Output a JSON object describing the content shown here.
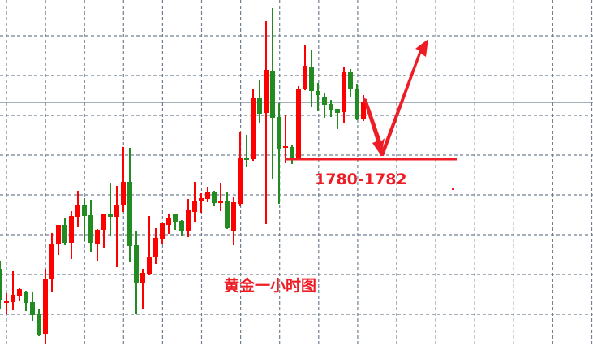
{
  "chart_data": {
    "type": "candlestick",
    "title": "黄金一小时图",
    "xlabel": "",
    "ylabel": "",
    "grid": true,
    "ylim": [
      1758.0,
      1800.6
    ],
    "up_color": "#ff0000",
    "down_color": "#228b22",
    "grid_color": "#708090",
    "annotation_color": "#ee1c25",
    "support_level": 1781.0,
    "reference_level": 1788.0,
    "support_label": "1780-1782",
    "arrow_path_prices": [
      1788.4,
      1781.2,
      1795.8
    ],
    "candles": [
      [
        1767.5,
        1768.5,
        1762.6,
        1763.7
      ],
      [
        1763.5,
        1764.5,
        1761.9,
        1763.5
      ],
      [
        1763.4,
        1767.2,
        1762.4,
        1764.3
      ],
      [
        1764.1,
        1765.2,
        1763.5,
        1765.0
      ],
      [
        1764.7,
        1764.8,
        1762.3,
        1763.3
      ],
      [
        1763.4,
        1764.7,
        1761.1,
        1761.8
      ],
      [
        1762.0,
        1762.5,
        1759.2,
        1759.3
      ],
      [
        1759.5,
        1767.5,
        1758.2,
        1766.3
      ],
      [
        1766.2,
        1771.9,
        1764.7,
        1770.6
      ],
      [
        1770.5,
        1772.9,
        1769.2,
        1772.9
      ],
      [
        1772.9,
        1773.7,
        1770.4,
        1770.7
      ],
      [
        1770.7,
        1774.6,
        1768.7,
        1774.0
      ],
      [
        1773.9,
        1777.1,
        1772.7,
        1775.4
      ],
      [
        1775.4,
        1776.2,
        1770.9,
        1774.0
      ],
      [
        1774.1,
        1776.0,
        1769.6,
        1770.7
      ],
      [
        1770.6,
        1772.4,
        1768.5,
        1772.3
      ],
      [
        1772.3,
        1774.2,
        1770.1,
        1774.2
      ],
      [
        1774.2,
        1778.1,
        1771.5,
        1773.9
      ],
      [
        1773.9,
        1777.7,
        1767.7,
        1775.3
      ],
      [
        1775.4,
        1782.5,
        1774.5,
        1778.2
      ],
      [
        1778.2,
        1782.4,
        1768.4,
        1770.3
      ],
      [
        1770.4,
        1772.1,
        1762.0,
        1765.7
      ],
      [
        1765.7,
        1767.5,
        1762.5,
        1767.0
      ],
      [
        1766.9,
        1774.0,
        1766.7,
        1769.0
      ],
      [
        1769.0,
        1772.5,
        1768.1,
        1771.3
      ],
      [
        1771.2,
        1773.1,
        1770.6,
        1773.1
      ],
      [
        1772.9,
        1774.2,
        1771.8,
        1773.8
      ],
      [
        1774.2,
        1774.2,
        1772.3,
        1773.3
      ],
      [
        1773.4,
        1773.5,
        1771.6,
        1772.2
      ],
      [
        1772.2,
        1776.1,
        1771.4,
        1774.7
      ],
      [
        1774.5,
        1778.2,
        1773.3,
        1775.9
      ],
      [
        1775.8,
        1776.8,
        1774.4,
        1776.2
      ],
      [
        1776.1,
        1777.6,
        1775.7,
        1776.9
      ],
      [
        1776.9,
        1777.1,
        1775.2,
        1775.6
      ],
      [
        1775.6,
        1778.1,
        1774.6,
        1775.9
      ],
      [
        1775.9,
        1776.9,
        1772.4,
        1772.5
      ],
      [
        1772.2,
        1776.3,
        1770.4,
        1775.7
      ],
      [
        1775.5,
        1784.4,
        1775.2,
        1781.2
      ],
      [
        1781.2,
        1784.0,
        1780.1,
        1780.9
      ],
      [
        1781.0,
        1789.7,
        1780.8,
        1788.5
      ],
      [
        1788.5,
        1790.7,
        1785.4,
        1786.6
      ],
      [
        1786.7,
        1798.0,
        1773.0,
        1792.0
      ],
      [
        1791.8,
        1799.6,
        1778.5,
        1786.1
      ],
      [
        1786.2,
        1787.9,
        1775.5,
        1782.3
      ],
      [
        1782.5,
        1786.5,
        1780.5,
        1782.6
      ],
      [
        1782.5,
        1782.8,
        1780.4,
        1781.0
      ],
      [
        1781.0,
        1790.0,
        1780.9,
        1789.7
      ],
      [
        1789.6,
        1795.0,
        1789.5,
        1792.5
      ],
      [
        1792.4,
        1794.4,
        1787.4,
        1789.4
      ],
      [
        1789.4,
        1790.4,
        1786.9,
        1788.9
      ],
      [
        1788.6,
        1789.2,
        1786.1,
        1787.7
      ],
      [
        1787.8,
        1788.3,
        1786.2,
        1787.1
      ],
      [
        1787.2,
        1787.2,
        1784.7,
        1786.7
      ],
      [
        1786.8,
        1792.4,
        1785.5,
        1791.7
      ],
      [
        1791.7,
        1792.1,
        1788.6,
        1789.6
      ],
      [
        1789.7,
        1790.3,
        1785.8,
        1786.0
      ],
      [
        1786.0,
        1788.9,
        1785.7,
        1788.0
      ]
    ]
  }
}
